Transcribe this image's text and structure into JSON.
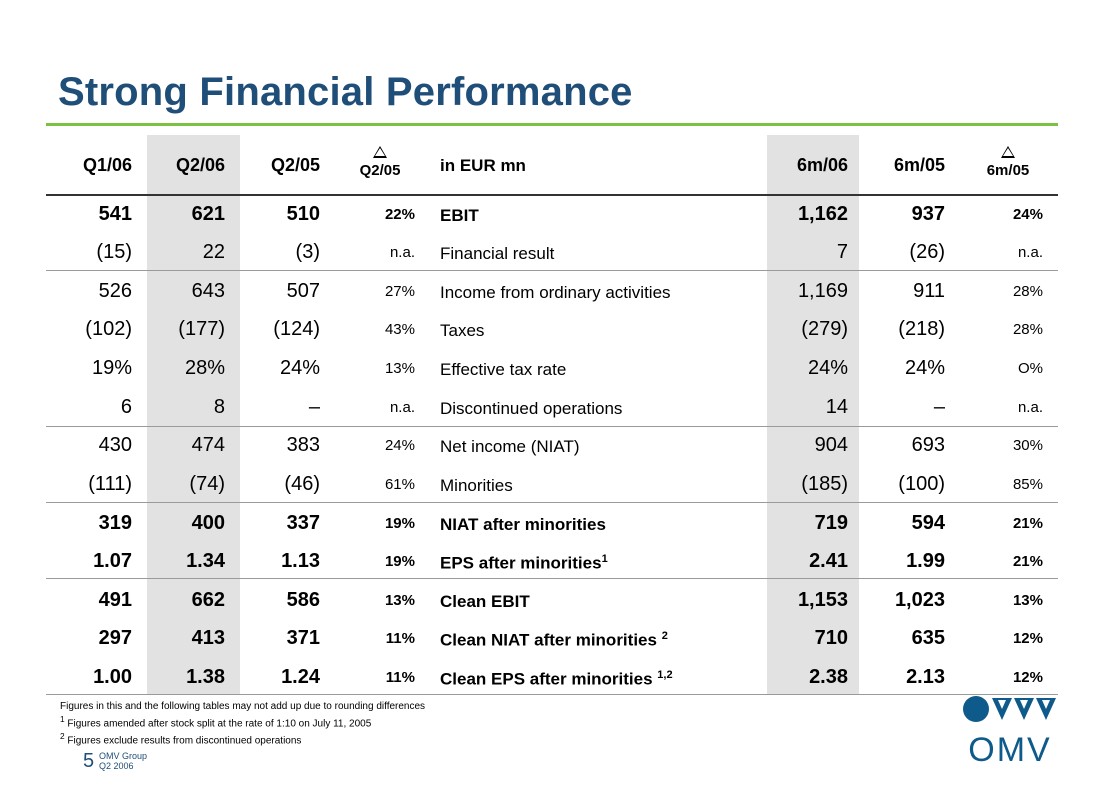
{
  "title": "Strong Financial Performance",
  "headers": {
    "q1_06": "Q1/06",
    "q2_06": "Q2/06",
    "q2_05": "Q2/05",
    "delta_q": "Q2/05",
    "label": "in EUR mn",
    "m6_06": "6m/06",
    "m6_05": "6m/05",
    "delta_m": "6m/05"
  },
  "rows": [
    {
      "q1": "541",
      "q2": "621",
      "q205": "510",
      "dq": "22%",
      "label": "EBIT",
      "sup": "",
      "m6": "1,162",
      "m605": "937",
      "dm": "24%",
      "bold": true
    },
    {
      "q1": "(15)",
      "q2": "22",
      "q205": "(3)",
      "dq": "n.a.",
      "label": "Financial result",
      "sup": "",
      "m6": "7",
      "m605": "(26)",
      "dm": "n.a.",
      "bold": false
    },
    {
      "q1": "526",
      "q2": "643",
      "q205": "507",
      "dq": "27%",
      "label": "Income from ordinary activities",
      "sup": "",
      "m6": "1,169",
      "m605": "911",
      "dm": "28%",
      "bold": false
    },
    {
      "q1": "(102)",
      "q2": "(177)",
      "q205": "(124)",
      "dq": "43%",
      "label": "Taxes",
      "sup": "",
      "m6": "(279)",
      "m605": "(218)",
      "dm": "28%",
      "bold": false
    },
    {
      "q1": "19%",
      "q2": "28%",
      "q205": "24%",
      "dq": "13%",
      "label": "Effective tax rate",
      "sup": "",
      "m6": "24%",
      "m605": "24%",
      "dm": "O%",
      "bold": false
    },
    {
      "q1": "6",
      "q2": "8",
      "q205": "–",
      "dq": "n.a.",
      "label": "Discontinued operations",
      "sup": "",
      "m6": "14",
      "m605": "–",
      "dm": "n.a.",
      "bold": false
    },
    {
      "q1": "430",
      "q2": "474",
      "q205": "383",
      "dq": "24%",
      "label": "Net income (NIAT)",
      "sup": "",
      "m6": "904",
      "m605": "693",
      "dm": "30%",
      "bold": false
    },
    {
      "q1": "(111)",
      "q2": "(74)",
      "q205": "(46)",
      "dq": "61%",
      "label": "Minorities",
      "sup": "",
      "m6": "(185)",
      "m605": "(100)",
      "dm": "85%",
      "bold": false
    },
    {
      "q1": "319",
      "q2": "400",
      "q205": "337",
      "dq": "19%",
      "label": "NIAT after minorities",
      "sup": "",
      "m6": "719",
      "m605": "594",
      "dm": "21%",
      "bold": true
    },
    {
      "q1": "1.07",
      "q2": "1.34",
      "q205": "1.13",
      "dq": "19%",
      "label": "EPS after minorities",
      "sup": "1",
      "m6": "2.41",
      "m605": "1.99",
      "dm": "21%",
      "bold": true
    },
    {
      "q1": "491",
      "q2": "662",
      "q205": "586",
      "dq": "13%",
      "label": "Clean EBIT",
      "sup": "",
      "m6": "1,153",
      "m605": "1,023",
      "dm": "13%",
      "bold": true
    },
    {
      "q1": "297",
      "q2": "413",
      "q205": "371",
      "dq": "11%",
      "label": "Clean NIAT after minorities ",
      "sup": "2",
      "m6": "710",
      "m605": "635",
      "dm": "12%",
      "bold": true
    },
    {
      "q1": "1.00",
      "q2": "1.38",
      "q205": "1.24",
      "dq": "11%",
      "label": "Clean EPS after minorities ",
      "sup": "1,2",
      "m6": "2.38",
      "m605": "2.13",
      "dm": "12%",
      "bold": true
    }
  ],
  "footnotes": [
    {
      "sup": "",
      "text": "Figures in this and the following tables may not add up due to rounding differences"
    },
    {
      "sup": "1",
      "text": " Figures amended after stock split at the rate of 1:10 on July 11, 2005"
    },
    {
      "sup": "2",
      "text": " Figures exclude results from discontinued operations"
    }
  ],
  "page_number": "5",
  "company": "OMV Group",
  "period": "Q2 2006",
  "logo_text": "OMV",
  "colors": {
    "title": "#1f4e79",
    "accent_line": "#7dc142",
    "shade": "#e2e2e2",
    "logo_blue": "#0e5a8a"
  }
}
